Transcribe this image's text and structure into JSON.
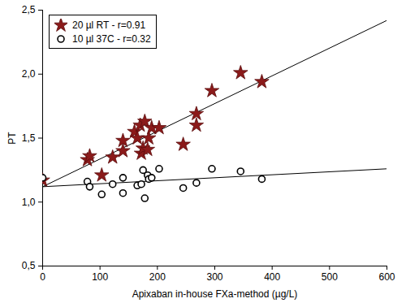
{
  "chart_data": {
    "type": "scatter",
    "xlabel": "Apixaban in-house FXa-method (µg/L)",
    "ylabel": "PT",
    "xlim": [
      0,
      600
    ],
    "ylim": [
      0.5,
      2.5
    ],
    "xticks": [
      0,
      100,
      200,
      300,
      400,
      500,
      600
    ],
    "yticks": [
      {
        "value": 0.5,
        "label": "0,5"
      },
      {
        "value": 1.0,
        "label": "1,0"
      },
      {
        "value": 1.5,
        "label": "1,5"
      },
      {
        "value": 2.0,
        "label": "2,0"
      },
      {
        "value": 2.5,
        "label": "2,5"
      }
    ],
    "legend": "top-left",
    "series": [
      {
        "name": "20 µl RT - r=0.91",
        "color": "#8b1a1a",
        "marker": "star",
        "x": [
          0,
          78,
          82,
          103,
          122,
          140,
          140,
          160,
          165,
          170,
          172,
          175,
          178,
          183,
          185,
          190,
          203,
          245,
          268,
          268,
          295,
          345,
          382
        ],
        "values": [
          1.17,
          1.33,
          1.36,
          1.21,
          1.35,
          1.4,
          1.48,
          1.55,
          1.5,
          1.6,
          1.38,
          1.42,
          1.63,
          1.41,
          1.5,
          1.58,
          1.58,
          1.45,
          1.6,
          1.69,
          1.87,
          2.01,
          1.94
        ],
        "fit_line": {
          "x": [
            0,
            600
          ],
          "values": [
            1.12,
            2.42
          ]
        }
      },
      {
        "name": "10 µl 37C - r=0.32",
        "color": "#000000",
        "marker": "circle",
        "x": [
          0,
          78,
          82,
          103,
          122,
          140,
          140,
          165,
          172,
          175,
          178,
          183,
          185,
          190,
          203,
          245,
          268,
          295,
          345,
          382
        ],
        "values": [
          1.19,
          1.16,
          1.12,
          1.06,
          1.14,
          1.19,
          1.07,
          1.13,
          1.14,
          1.25,
          1.03,
          1.21,
          1.18,
          1.19,
          1.26,
          1.11,
          1.15,
          1.26,
          1.24,
          1.18
        ],
        "fit_line": {
          "x": [
            0,
            600
          ],
          "values": [
            1.12,
            1.26
          ]
        }
      }
    ]
  }
}
